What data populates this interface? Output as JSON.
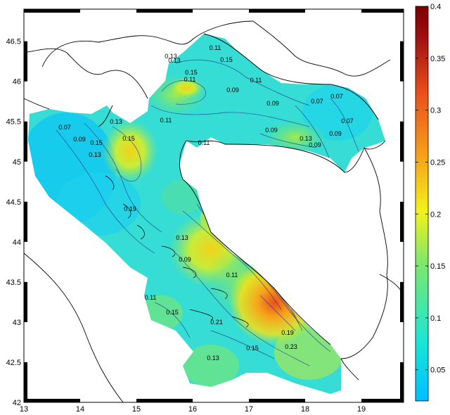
{
  "map": {
    "x_ticks": [
      "13",
      "14",
      "15",
      "16",
      "17",
      "18",
      "19"
    ],
    "y_ticks": [
      "46.5",
      "46",
      "45.5",
      "45",
      "44.5",
      "44",
      "43.5",
      "43",
      "42.5",
      "42"
    ],
    "x_range": [
      13,
      19.75
    ],
    "y_range": [
      42,
      46.9
    ],
    "contour_labels": [
      "0.11",
      "0.15",
      "0.13",
      "0.15",
      "0.11",
      "0.09",
      "0.11",
      "0.09",
      "0.07",
      "0.07",
      "0.09",
      "0.13",
      "0.11",
      "0.07",
      "0.09",
      "0.13",
      "0.15",
      "0.11",
      "0.09",
      "0.07",
      "0.09",
      "0.13",
      "0.13",
      "0.15",
      "0.19",
      "0.13",
      "0.09",
      "0.11",
      "0.11",
      "0.15",
      "0.21",
      "0.23",
      "0.19",
      "0.15",
      "0.13"
    ]
  },
  "colorbar": {
    "ticks": [
      "0.4",
      "0.35",
      "0.3",
      "0.25",
      "0.2",
      "0.15",
      "0.1",
      "0.05"
    ],
    "min": 0.02,
    "max": 0.4,
    "colors": [
      "#00bfff",
      "#19e6d6",
      "#7ee86a",
      "#f2f21a",
      "#f7a21a",
      "#e8501a",
      "#a01010",
      "#7a0000"
    ]
  }
}
